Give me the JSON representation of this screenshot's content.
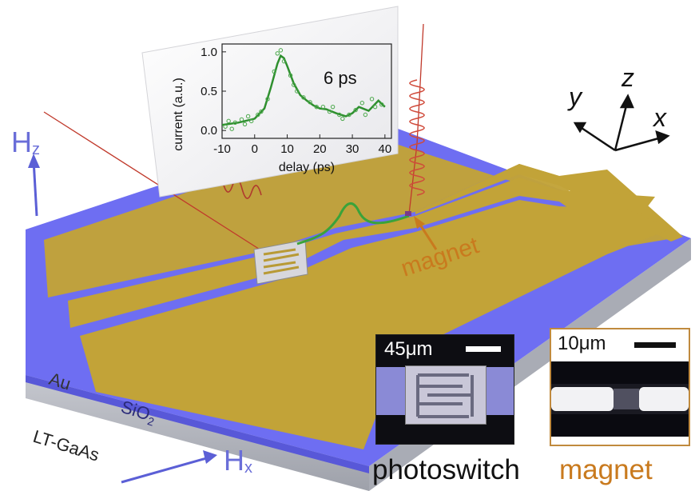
{
  "axes_labels": {
    "y": "y",
    "z": "z",
    "x": "x"
  },
  "field_labels": {
    "hz_main": "H",
    "hz_sub": "z",
    "hx_main": "H",
    "hx_sub": "x"
  },
  "layer_labels": {
    "au": "Au",
    "sio2_main": "SiO",
    "sio2_sub": "2",
    "ltgaas": "LT-GaAs"
  },
  "annotations": {
    "magnet_arrow_label": "magnet"
  },
  "insets": {
    "photoswitch": {
      "scalebar": "45μm",
      "caption": "photoswitch"
    },
    "magnet": {
      "scalebar": "10μm",
      "caption": "magnet"
    }
  },
  "colors": {
    "gold": "#c2a338",
    "substrate_top": "#6b6bf0",
    "substrate_side": "#b9bcc4",
    "laser_red": "#c0392b",
    "curve_green": "#2f8f2f",
    "field_arrow": "#5b5fd6",
    "magnet_orange": "#c97a1e"
  },
  "chart_data": {
    "type": "scatter",
    "title": "",
    "annotation": "6 ps",
    "xlabel": "delay (ps)",
    "ylabel": "current (a.u.)",
    "xlim": [
      -10,
      42
    ],
    "ylim": [
      -0.1,
      1.1
    ],
    "xticks": [
      "-10",
      "0",
      "10",
      "20",
      "30",
      "40"
    ],
    "yticks": [
      "0.0",
      "0.5",
      "1.0"
    ],
    "grid": false,
    "series": [
      {
        "kind": "line",
        "x": [
          -10,
          -5,
          0,
          3,
          5,
          7,
          8,
          9,
          10,
          12,
          14,
          16,
          18,
          20,
          22,
          25,
          28,
          30,
          32,
          35,
          38,
          40
        ],
        "y": [
          0.07,
          0.1,
          0.15,
          0.28,
          0.55,
          0.85,
          0.95,
          0.92,
          0.82,
          0.6,
          0.45,
          0.38,
          0.32,
          0.28,
          0.27,
          0.22,
          0.18,
          0.22,
          0.3,
          0.25,
          0.38,
          0.3
        ]
      },
      {
        "kind": "markers",
        "x": [
          -9,
          -8,
          -7,
          -6,
          -4,
          -3,
          -2,
          -1,
          1,
          2,
          4,
          6,
          7,
          8,
          9,
          11,
          12,
          13,
          15,
          17,
          19,
          21,
          23,
          24,
          26,
          27,
          29,
          31,
          33,
          34,
          36,
          37,
          39
        ],
        "y": [
          0.05,
          0.12,
          0.02,
          0.1,
          0.14,
          0.08,
          0.18,
          0.12,
          0.2,
          0.24,
          0.4,
          0.75,
          0.98,
          1.02,
          0.88,
          0.7,
          0.58,
          0.5,
          0.42,
          0.36,
          0.3,
          0.3,
          0.24,
          0.3,
          0.2,
          0.15,
          0.2,
          0.26,
          0.35,
          0.2,
          0.4,
          0.3,
          0.33
        ]
      }
    ]
  }
}
